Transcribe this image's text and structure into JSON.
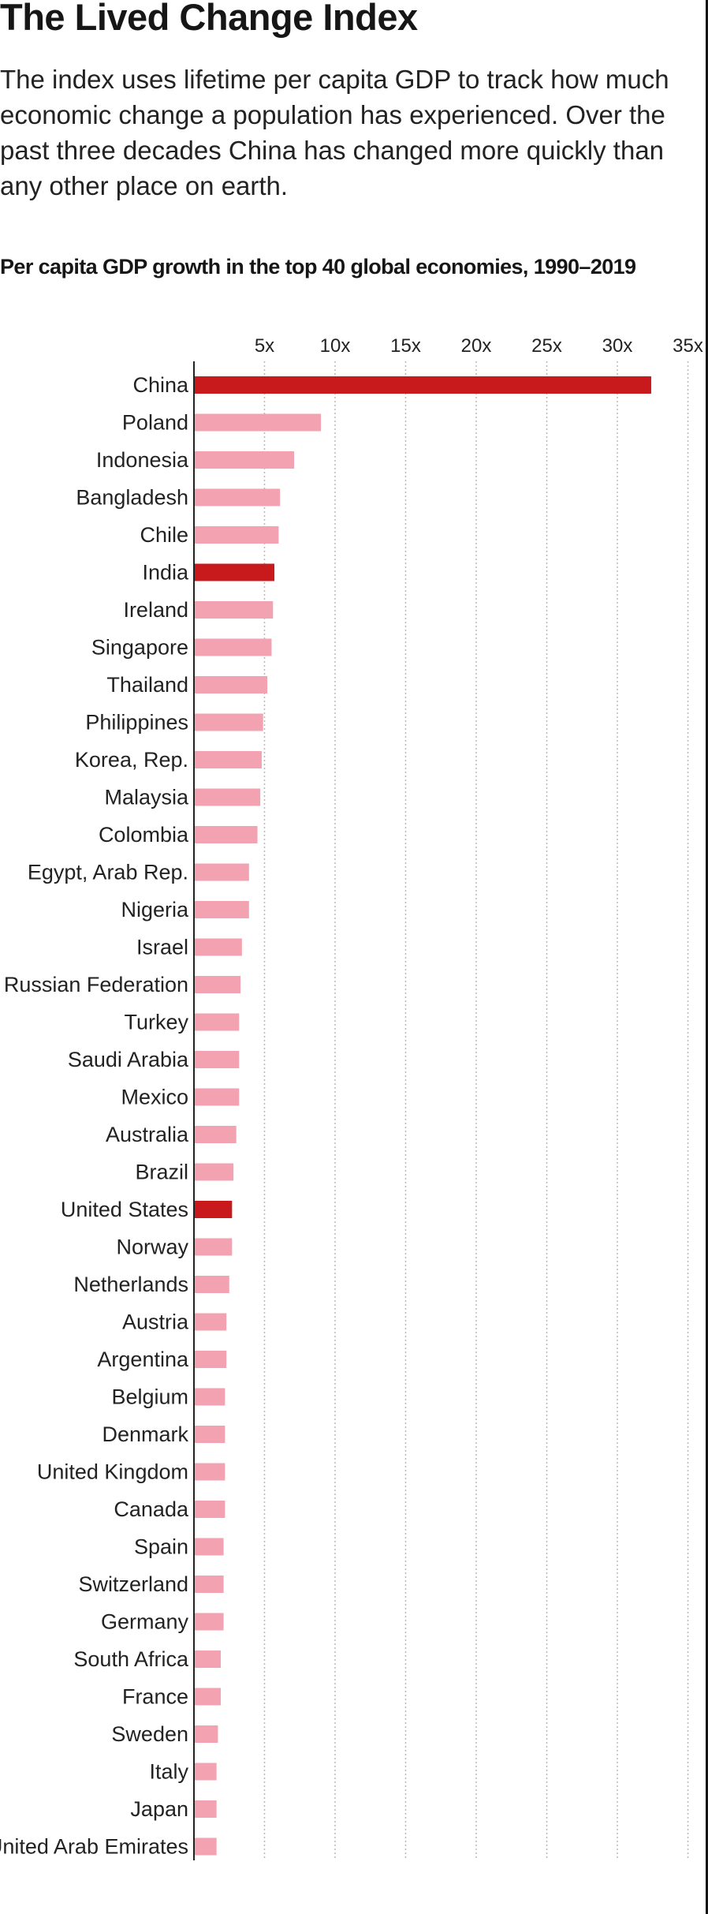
{
  "header": {
    "title": "The Lived Change Index",
    "intro": "The index uses lifetime per capita GDP to track how much economic change a population has experienced. Over the past three decades China has changed more quickly than any other place on earth."
  },
  "chart_data": {
    "type": "bar",
    "orientation": "horizontal",
    "title": "Per capita GDP growth in the top 40 global economies, 1990–2019",
    "xlabel": "",
    "ylabel": "",
    "xlim": [
      0,
      35
    ],
    "x_ticks": [
      5,
      10,
      15,
      20,
      25,
      30,
      35
    ],
    "x_tick_labels": [
      "5x",
      "10x",
      "15x",
      "20x",
      "25x",
      "30x",
      "35x"
    ],
    "grid": "vertical dotted",
    "axis_position": "top",
    "colors": {
      "highlight": "#c8191c",
      "default": "#f2a2b0",
      "grid": "#b8b8b8",
      "axis": "#222222"
    },
    "categories": [
      "China",
      "Poland",
      "Indonesia",
      "Bangladesh",
      "Chile",
      "India",
      "Ireland",
      "Singapore",
      "Thailand",
      "Philippines",
      "Korea, Rep.",
      "Malaysia",
      "Colombia",
      "Egypt, Arab Rep.",
      "Nigeria",
      "Israel",
      "Russian Federation",
      "Turkey",
      "Saudi Arabia",
      "Mexico",
      "Australia",
      "Brazil",
      "United States",
      "Norway",
      "Netherlands",
      "Austria",
      "Argentina",
      "Belgium",
      "Denmark",
      "United Kingdom",
      "Canada",
      "Spain",
      "Switzerland",
      "Germany",
      "South Africa",
      "France",
      "Sweden",
      "Italy",
      "Japan",
      "United Arab Emirates"
    ],
    "values": [
      32.4,
      9.0,
      7.1,
      6.1,
      6.0,
      5.7,
      5.6,
      5.5,
      5.2,
      4.9,
      4.8,
      4.7,
      4.5,
      3.9,
      3.9,
      3.4,
      3.3,
      3.2,
      3.2,
      3.2,
      3.0,
      2.8,
      2.7,
      2.7,
      2.5,
      2.3,
      2.3,
      2.2,
      2.2,
      2.2,
      2.2,
      2.1,
      2.1,
      2.1,
      1.9,
      1.9,
      1.7,
      1.6,
      1.6,
      1.6
    ],
    "highlighted": [
      "China",
      "India",
      "United States"
    ]
  }
}
